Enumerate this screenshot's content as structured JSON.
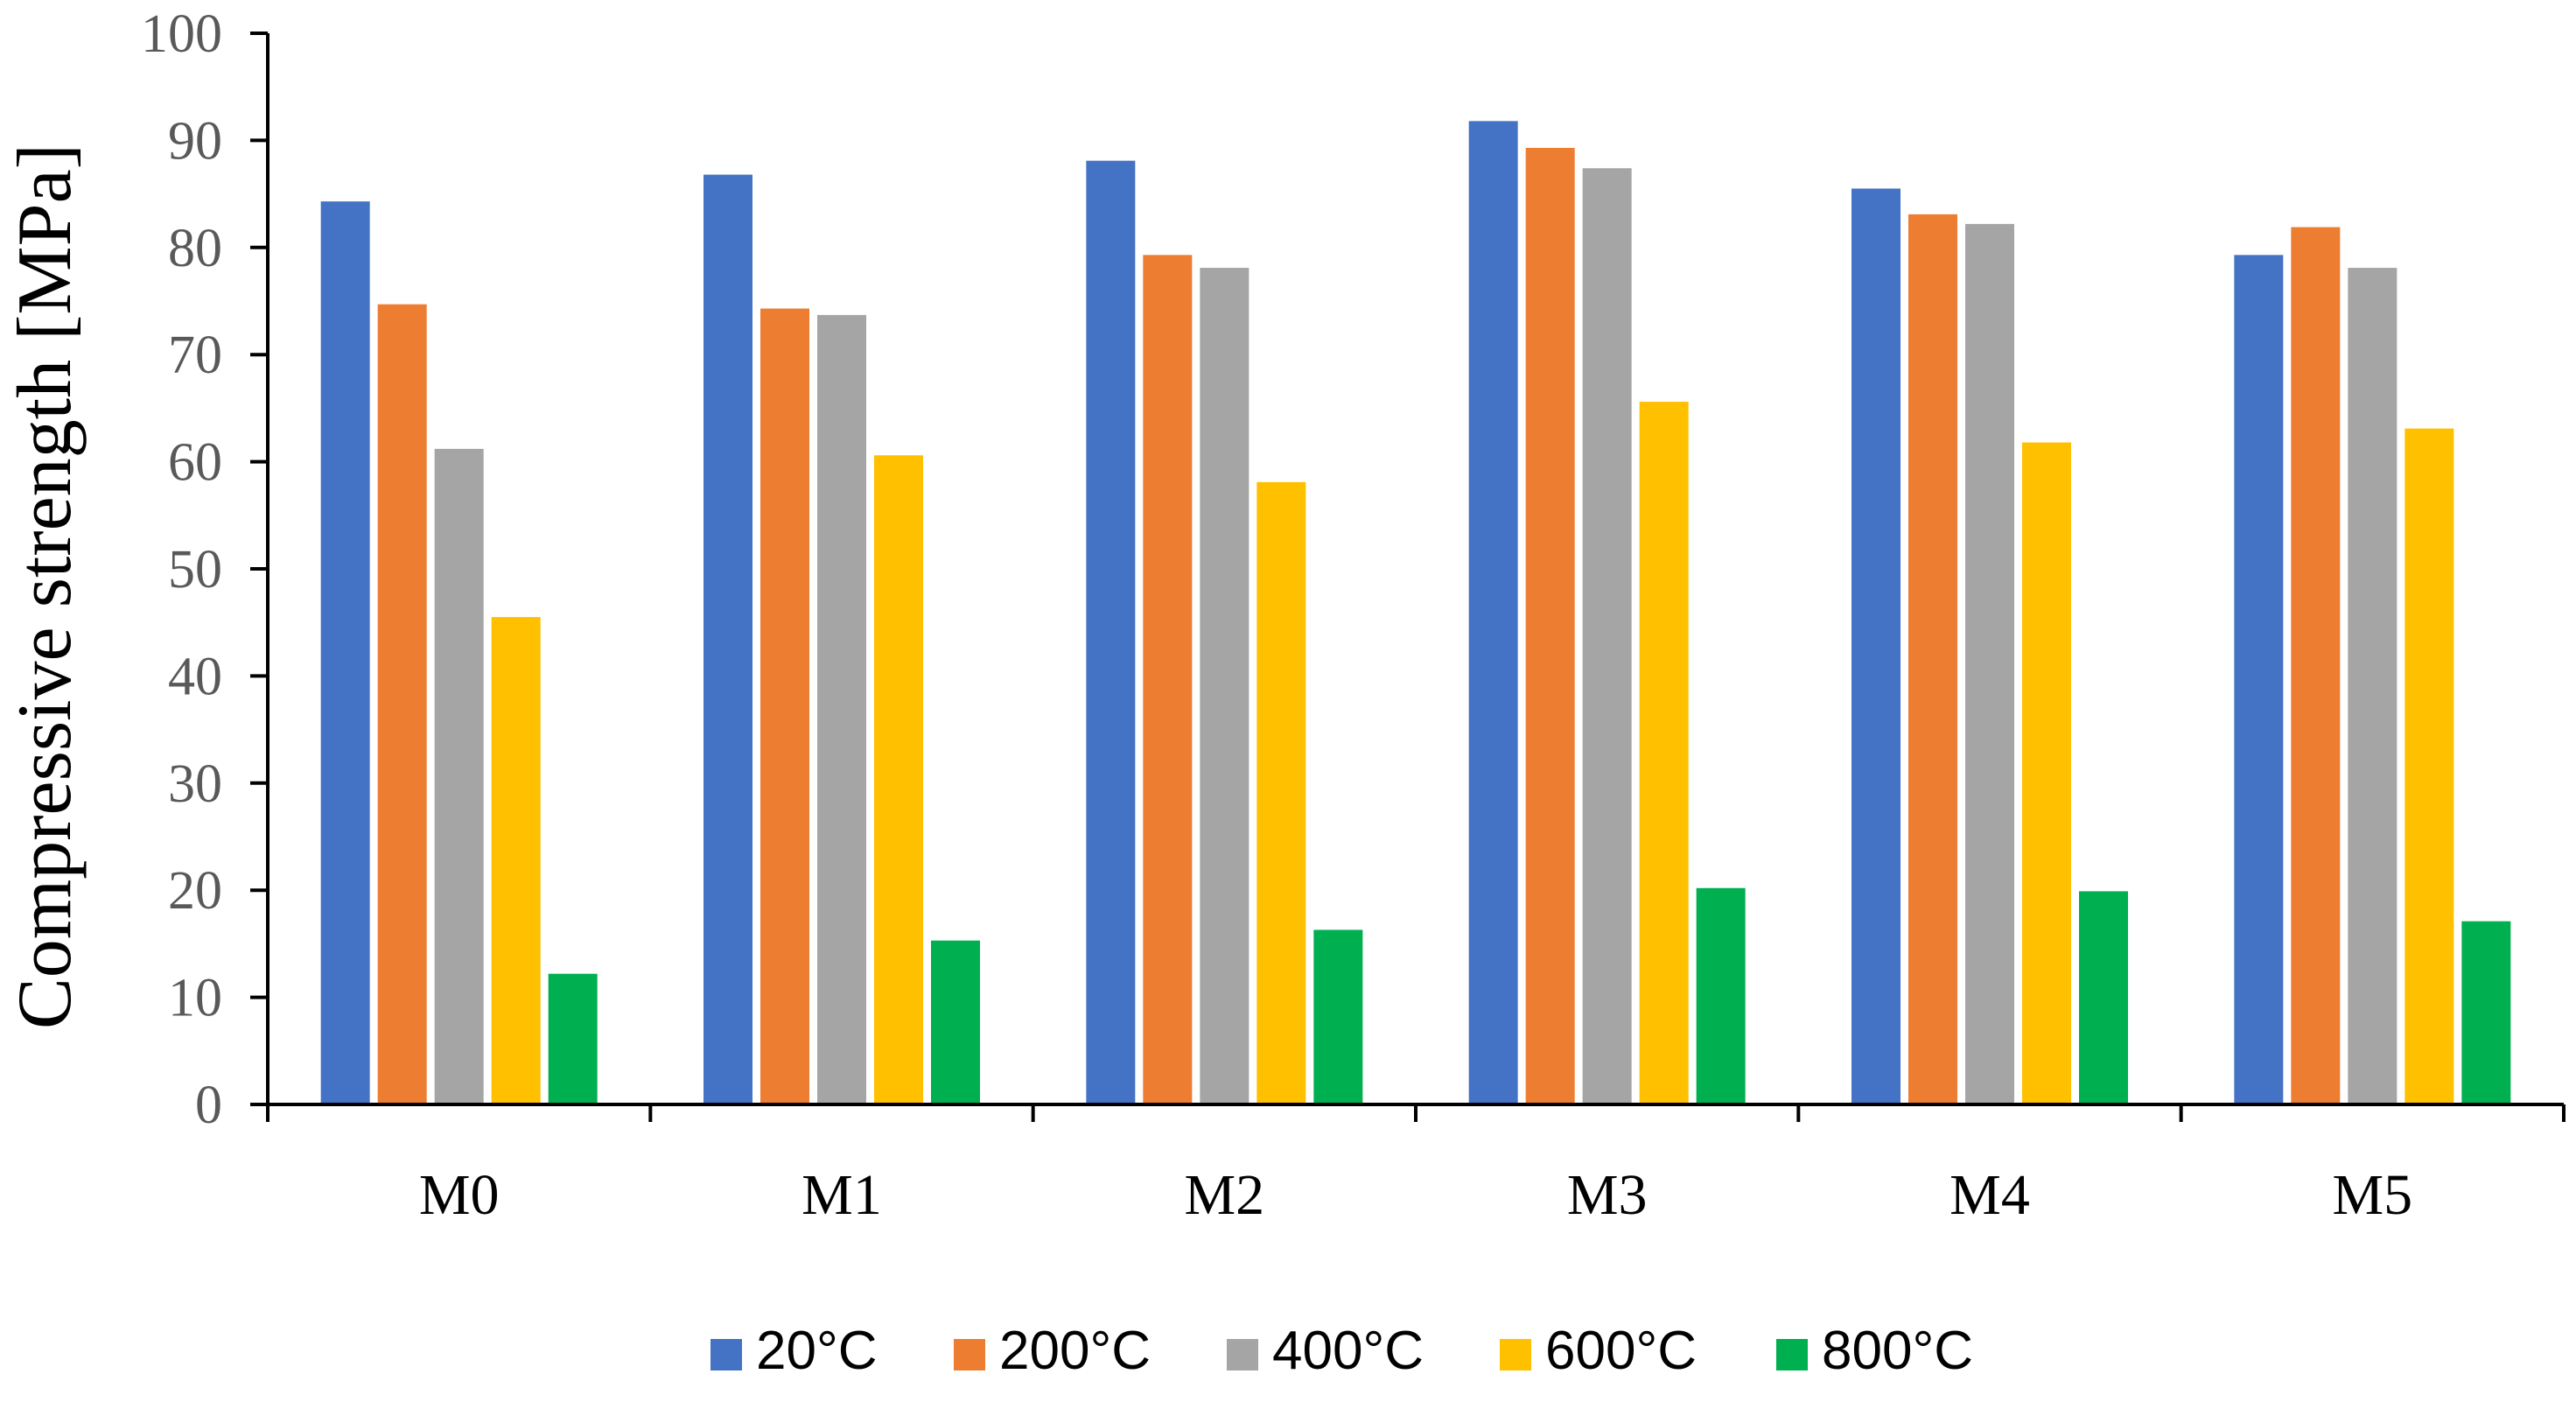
{
  "chart_data": {
    "type": "bar",
    "title": "",
    "xlabel": "",
    "ylabel": "Compressive strength [MPa]",
    "ylim": [
      0,
      100
    ],
    "yticks": [
      0,
      10,
      20,
      30,
      40,
      50,
      60,
      70,
      80,
      90,
      100
    ],
    "ytick_labels": [
      "0",
      "10",
      "20",
      "30",
      "40",
      "50",
      "60",
      "70",
      "80",
      "90",
      "100"
    ],
    "categories": [
      "M0",
      "M1",
      "M2",
      "M3",
      "M4",
      "M5"
    ],
    "series": [
      {
        "name": "20°C",
        "color": "#4472C4",
        "values": [
          84.3,
          86.8,
          88.1,
          91.8,
          85.5,
          79.3
        ]
      },
      {
        "name": "200°C",
        "color": "#ED7D31",
        "values": [
          74.7,
          74.3,
          79.3,
          89.3,
          83.1,
          81.9
        ]
      },
      {
        "name": "400°C",
        "color": "#A5A5A5",
        "values": [
          61.2,
          73.7,
          78.1,
          87.4,
          82.2,
          78.1
        ]
      },
      {
        "name": "600°C",
        "color": "#FFC000",
        "values": [
          45.5,
          60.6,
          58.1,
          65.6,
          61.8,
          63.1
        ]
      },
      {
        "name": "800°C",
        "color": "#00B050",
        "values": [
          12.2,
          15.3,
          16.3,
          20.2,
          19.9,
          17.1
        ]
      }
    ],
    "grid": false,
    "legend_position": "bottom"
  }
}
